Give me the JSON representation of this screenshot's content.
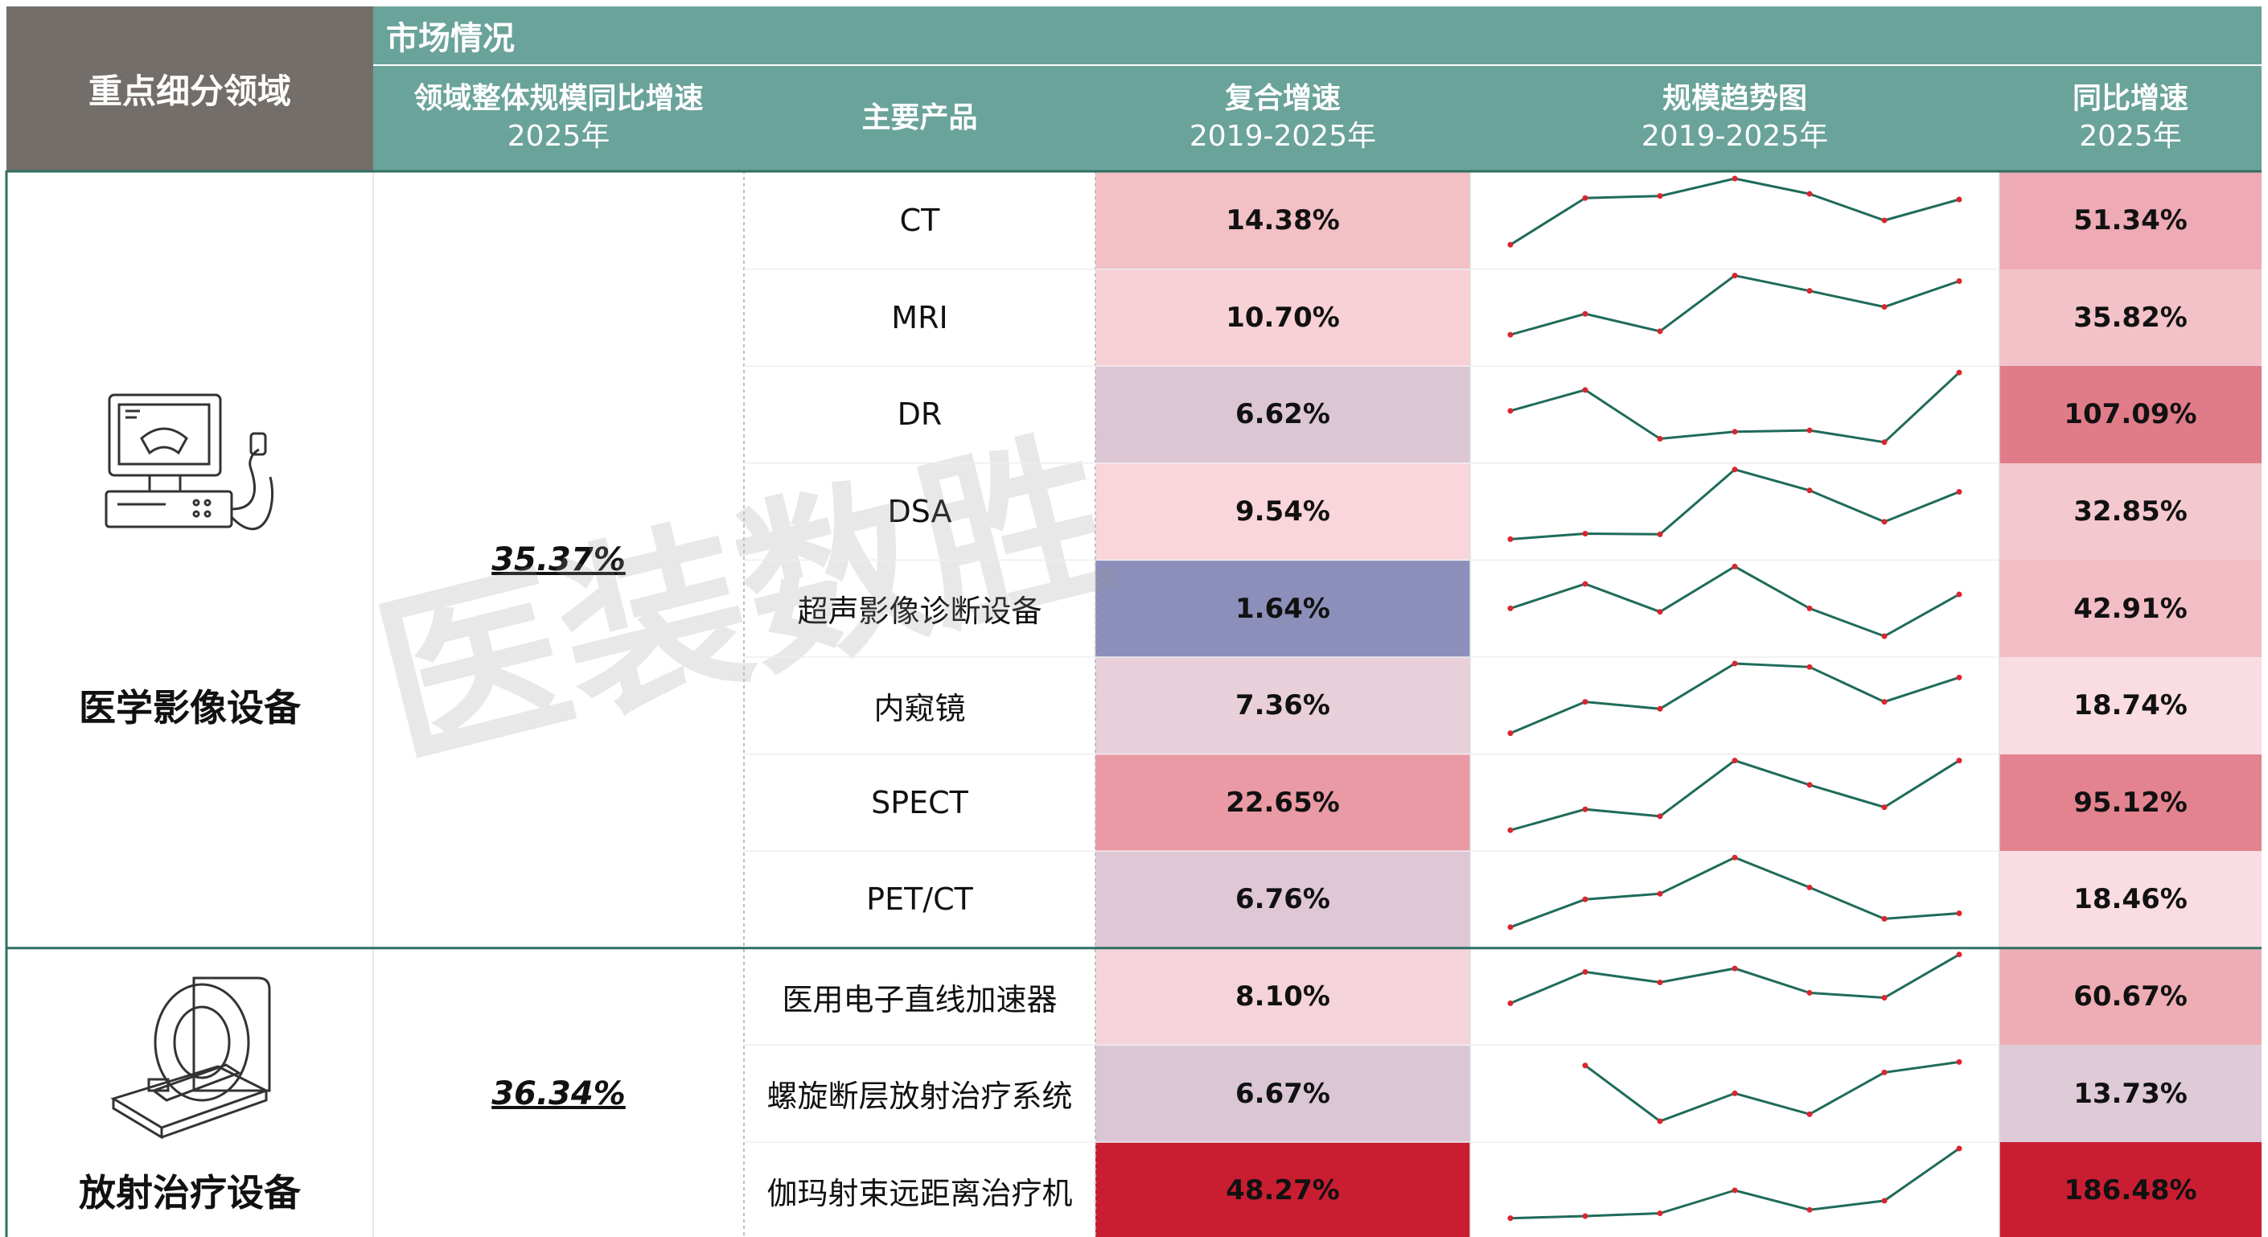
{
  "header": {
    "corner_title": "重点细分领域",
    "section_title": "市场情况",
    "col_segment_growth": "领域整体规模同比增速",
    "col_segment_growth_sub": "2025年",
    "col_product": "主要产品",
    "col_cagr": "复合增速",
    "col_cagr_sub": "2019-2025年",
    "col_trend": "规模趋势图",
    "col_trend_sub": "2019-2025年",
    "col_yoy": "同比增速",
    "col_yoy_sub": "2025年"
  },
  "watermark": "医装数胜",
  "segments": [
    {
      "name": "医学影像设备",
      "growth": "35.37%",
      "icon": "ultrasound-machine-icon"
    },
    {
      "name": "放射治疗设备",
      "growth": "36.34%",
      "icon": "radiotherapy-machine-icon"
    }
  ],
  "colors": {
    "header_teal": "#6aa39a",
    "corner_gray": "#736e6a",
    "trend_line": "#1f6b5a",
    "trend_point": "#d9262f"
  },
  "chart_data": {
    "type": "table",
    "columns": [
      "主要产品",
      "复合增速 2019-2025年",
      "规模趋势图 2019-2025年",
      "同比增速 2025年"
    ],
    "rows": [
      {
        "segment": "医学影像设备",
        "product": "CT",
        "cagr": "14.38%",
        "yoy": "51.34%",
        "cagr_color": "#f3c0c6",
        "yoy_color": "#eeabb5",
        "trend": [
          0.05,
          0.72,
          0.75,
          1.0,
          0.78,
          0.4,
          0.7
        ]
      },
      {
        "segment": "医学影像设备",
        "product": "MRI",
        "cagr": "10.70%",
        "yoy": "35.82%",
        "cagr_color": "#f8d1d6",
        "yoy_color": "#f3c2c9",
        "trend": [
          0.15,
          0.45,
          0.2,
          1.0,
          0.78,
          0.55,
          0.92
        ]
      },
      {
        "segment": "医学影像设备",
        "product": "DR",
        "cagr": "6.62%",
        "yoy": "107.09%",
        "cagr_color": "#dcc6d4",
        "yoy_color": "#e07b88",
        "trend": [
          0.45,
          0.75,
          0.05,
          0.15,
          0.17,
          0.0,
          1.0
        ]
      },
      {
        "segment": "医学影像设备",
        "product": "DSA",
        "cagr": "9.54%",
        "yoy": "32.85%",
        "cagr_color": "#f9d6dc",
        "yoy_color": "#f4c8cf",
        "trend": [
          0.0,
          0.08,
          0.07,
          1.0,
          0.7,
          0.25,
          0.68
        ]
      },
      {
        "segment": "医学影像设备",
        "product": "超声影像诊断设备",
        "cagr": "1.64%",
        "yoy": "42.91%",
        "cagr_color": "#8c8fba",
        "yoy_color": "#f2bdc5",
        "trend": [
          0.4,
          0.75,
          0.35,
          1.0,
          0.4,
          0.0,
          0.6
        ]
      },
      {
        "segment": "医学影像设备",
        "product": "内窥镜",
        "cagr": "7.36%",
        "yoy": "18.74%",
        "cagr_color": "#e8cfd9",
        "yoy_color": "#f9dde2",
        "trend": [
          0.0,
          0.45,
          0.35,
          1.0,
          0.95,
          0.45,
          0.8
        ]
      },
      {
        "segment": "医学影像设备",
        "product": "SPECT",
        "cagr": "22.65%",
        "yoy": "95.12%",
        "cagr_color": "#ea9aa4",
        "yoy_color": "#e3838f",
        "trend": [
          0.0,
          0.3,
          0.2,
          1.0,
          0.65,
          0.33,
          1.0
        ]
      },
      {
        "segment": "医学影像设备",
        "product": "PET/CT",
        "cagr": "6.76%",
        "yoy": "18.46%",
        "cagr_color": "#dfc7d5",
        "yoy_color": "#f9dde2",
        "trend": [
          0.0,
          0.4,
          0.48,
          1.0,
          0.57,
          0.12,
          0.2
        ]
      },
      {
        "segment": "放射治疗设备",
        "product": "医用电子直线加速器",
        "cagr": "8.10%",
        "yoy": "60.67%",
        "cagr_color": "#f4d4da",
        "yoy_color": "#eeadb5",
        "trend": [
          0.3,
          0.75,
          0.6,
          0.8,
          0.45,
          0.38,
          1.0
        ]
      },
      {
        "segment": "放射治疗设备",
        "product": "螺旋断层放射治疗系统",
        "cagr": "6.67%",
        "yoy": "13.73%",
        "cagr_color": "#dac6d5",
        "yoy_color": "#dfcad7",
        "trend": [
          null,
          0.8,
          0.0,
          0.4,
          0.1,
          0.7,
          0.85
        ]
      },
      {
        "segment": "放射治疗设备",
        "product": "伽玛射束远距离治疗机",
        "cagr": "48.27%",
        "yoy": "186.48%",
        "cagr_color": "#c91e32",
        "yoy_color": "#c91e32",
        "trend": [
          0.0,
          0.03,
          0.07,
          0.4,
          0.12,
          0.25,
          1.0
        ]
      }
    ]
  }
}
